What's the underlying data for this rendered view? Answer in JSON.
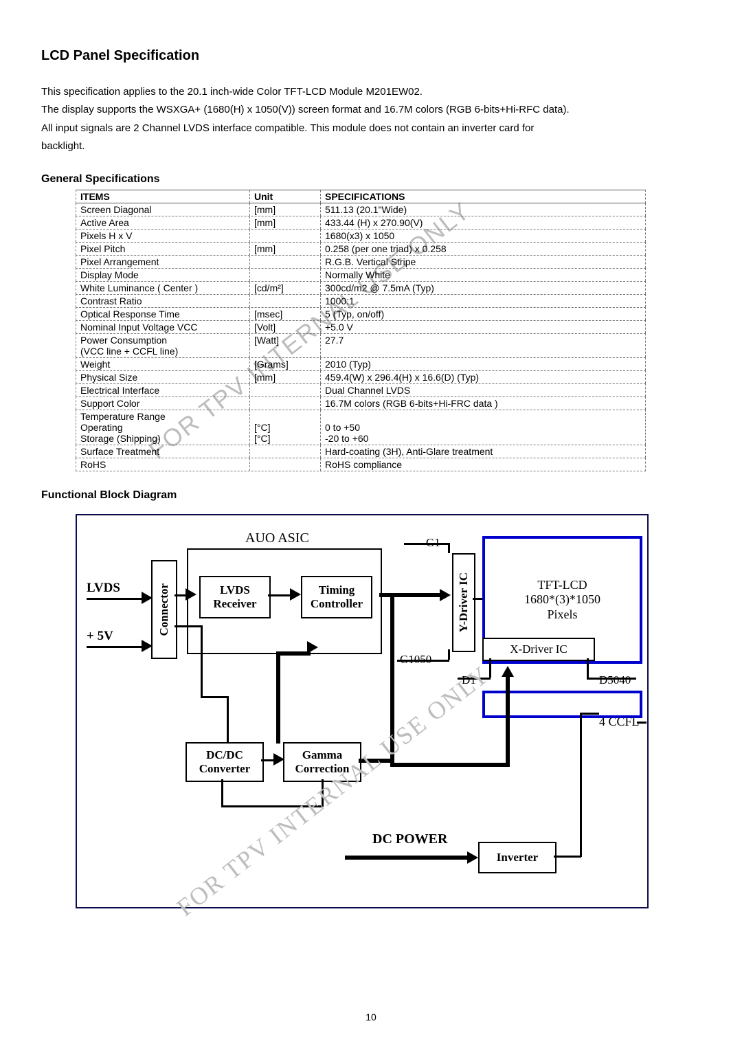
{
  "title": "LCD Panel Specification",
  "intro": {
    "line1": "This specification applies to the 20.1 inch-wide Color TFT-LCD Module M201EW02.",
    "line2": "The display supports the WSXGA+ (1680(H) x 1050(V)) screen format and 16.7M colors (RGB 6-bits+Hi-RFC data).",
    "line3": "All input signals are 2 Channel LVDS interface compatible. This module does not contain an inverter card for",
    "line4": "backlight."
  },
  "subhead1": "General Specifications",
  "table": {
    "headers": {
      "item": "ITEMS",
      "unit": "Unit",
      "spec": "SPECIFICATIONS"
    },
    "rows": [
      {
        "item": "Screen Diagonal",
        "unit": "[mm]",
        "spec": "511.13 (20.1\"Wide)"
      },
      {
        "item": "Active Area",
        "unit": "[mm]",
        "spec": "433.44 (H) x 270.90(V)"
      },
      {
        "item": "Pixels H x V",
        "unit": "",
        "spec": "1680(x3) x 1050"
      },
      {
        "item": "Pixel Pitch",
        "unit": "[mm]",
        "spec": "0.258 (per one triad) x 0.258"
      },
      {
        "item": "Pixel Arrangement",
        "unit": "",
        "spec": "R.G.B. Vertical Stripe"
      },
      {
        "item": "Display Mode",
        "unit": "",
        "spec": "Normally White"
      },
      {
        "item": "White Luminance ( Center )",
        "unit": "[cd/m²]",
        "spec": "300cd/m2 @ 7.5mA   (Typ)"
      },
      {
        "item": "Contrast Ratio",
        "unit": "",
        "spec": "1000:1"
      },
      {
        "item": "Optical Response Time",
        "unit": "[msec]",
        "spec": "5 (Typ, on/off)"
      },
      {
        "item": "Nominal Input Voltage VCC",
        "unit": "[Volt]",
        "spec": "+5.0 V"
      },
      {
        "item": "Power Consumption\n(VCC line + CCFL line)",
        "unit": "[Watt]",
        "spec": "27.7"
      },
      {
        "item": "Weight",
        "unit": "[Grams]",
        "spec": "2010 (Typ)"
      },
      {
        "item": "Physical Size",
        "unit": "[mm]",
        "spec": "459.4(W) x 296.4(H) x 16.6(D) (Typ)"
      },
      {
        "item": "Electrical Interface",
        "unit": "",
        "spec": "Dual Channel LVDS"
      },
      {
        "item": "Support Color",
        "unit": "",
        "spec": "16.7M colors (RGB 6-bits+Hi-FRC data )"
      },
      {
        "item": "Temperature Range\n   Operating\n   Storage (Shipping)",
        "unit": "\n[°C]\n[°C]",
        "spec": "\n0 to +50\n-20 to +60"
      },
      {
        "item": "Surface Treatment",
        "unit": "",
        "spec": "Hard-coating (3H), Anti-Glare treatment"
      },
      {
        "item": "RoHS",
        "unit": "",
        "spec": "RoHS compliance"
      }
    ]
  },
  "subhead2": "Functional Block Diagram",
  "diagram": {
    "asic_label": "AUO ASIC",
    "lvds_in": "LVDS",
    "plus5v": "+ 5V",
    "connector": "Connector",
    "lvds_rx": "LVDS\nReceiver",
    "timing": "Timing\nController",
    "ydriver": "Y-Driver IC",
    "g1": "G1",
    "g1050": "G1050",
    "tft": "TFT-LCD\n1680*(3)*1050\nPixels",
    "xdriver": "X-Driver IC",
    "d1": "D1",
    "d5040": "D5040",
    "ccfl": "4  CCFL",
    "dcdc": "DC/DC\nConverter",
    "gamma": "Gamma\nCorrection",
    "dcpower": "DC POWER",
    "inverter": "Inverter"
  },
  "watermark": "FOR TPV INTERNAL USE ONLY",
  "page_number": "10",
  "colors": {
    "text": "#000000",
    "bg": "#ffffff",
    "diagram_border": "#0b0b4d",
    "watermark": "#bdbdbd",
    "tft_border": "#0000cc"
  }
}
